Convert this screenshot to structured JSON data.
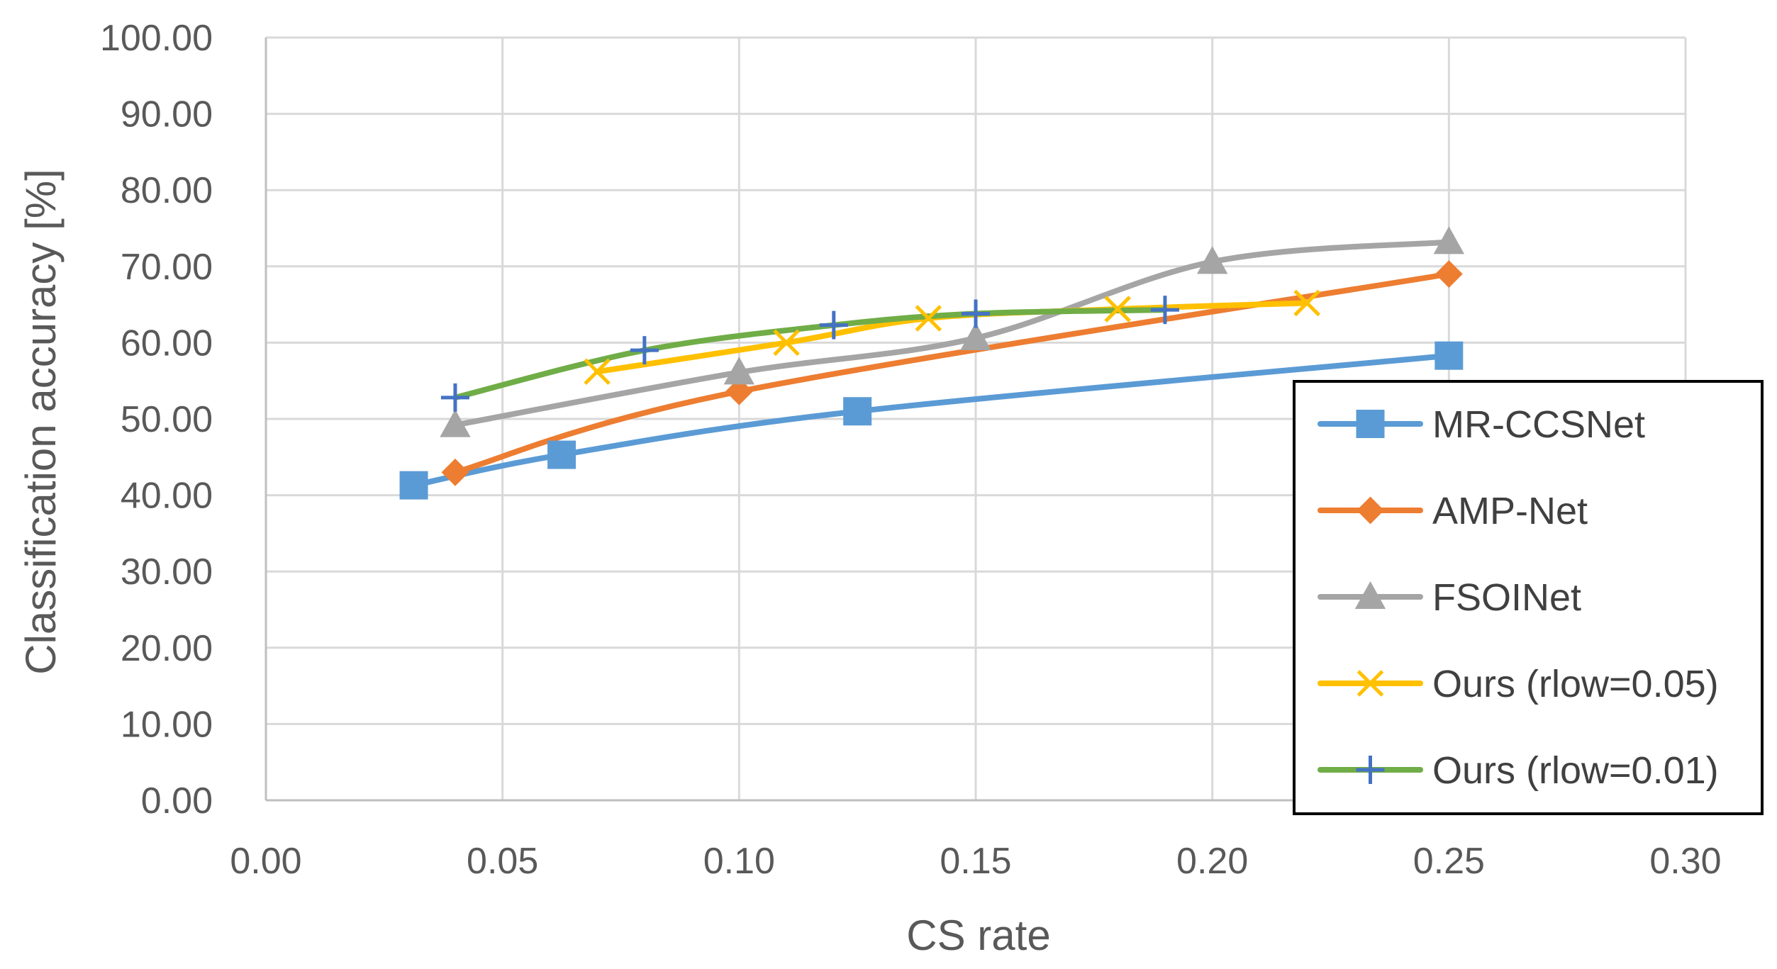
{
  "chart_data": {
    "type": "line",
    "title": "",
    "xlabel": "CS rate",
    "ylabel": "Classification accuracy [%]",
    "xlim": [
      0.0,
      0.3
    ],
    "ylim": [
      0.0,
      100.0
    ],
    "x_ticks": [
      0.0,
      0.05,
      0.1,
      0.15,
      0.2,
      0.25,
      0.3
    ],
    "y_ticks": [
      0,
      10,
      20,
      30,
      40,
      50,
      60,
      70,
      80,
      90,
      100
    ],
    "x_tick_labels": [
      "0.00",
      "0.05",
      "0.10",
      "0.15",
      "0.20",
      "0.25",
      "0.30"
    ],
    "y_tick_labels": [
      "0.00",
      "10.00",
      "20.00",
      "30.00",
      "40.00",
      "50.00",
      "60.00",
      "70.00",
      "80.00",
      "90.00",
      "100.00"
    ],
    "grid": true,
    "legend_position": "right",
    "series": [
      {
        "name": "MR-CCSNet",
        "color": "#5B9BD5",
        "marker": "square",
        "x": [
          0.03125,
          0.0625,
          0.125,
          0.25
        ],
        "values": [
          41.3,
          45.3,
          51.0,
          58.3
        ]
      },
      {
        "name": "AMP-Net",
        "color": "#ED7D31",
        "marker": "diamond",
        "x": [
          0.04,
          0.1,
          0.25
        ],
        "values": [
          43.0,
          53.6,
          69.0
        ]
      },
      {
        "name": "FSOINet",
        "color": "#A5A5A5",
        "marker": "triangle",
        "x": [
          0.04,
          0.1,
          0.15,
          0.2,
          0.25
        ],
        "values": [
          49.2,
          56.1,
          60.6,
          70.6,
          73.2
        ]
      },
      {
        "name": "Ours (rlow=0.05)",
        "color": "#FFC000",
        "marker": "x",
        "x": [
          0.07,
          0.11,
          0.14,
          0.18,
          0.22
        ],
        "values": [
          56.2,
          60.0,
          63.2,
          64.4,
          65.2
        ]
      },
      {
        "name": "Ours (rlow=0.01)",
        "color": "#70AD47",
        "marker_color": "#4472C4",
        "marker": "plus",
        "x": [
          0.04,
          0.08,
          0.12,
          0.15,
          0.19
        ],
        "values": [
          52.8,
          59.0,
          62.3,
          63.8,
          64.3
        ]
      }
    ]
  }
}
